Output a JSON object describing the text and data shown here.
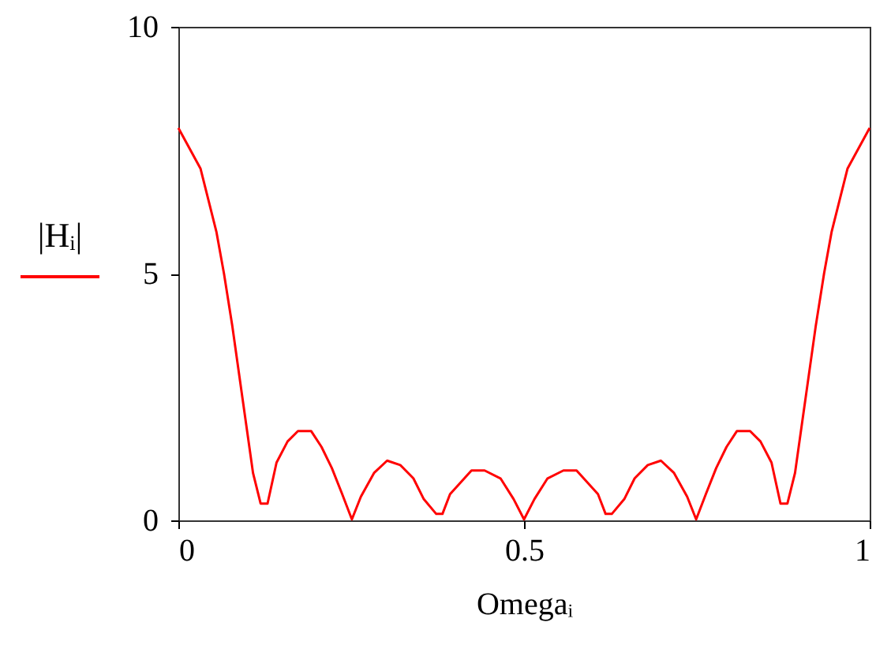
{
  "chart_data": {
    "type": "line",
    "xlabel": "Omegaᵢ",
    "ylabel": "|Hᵢ|",
    "x": [
      0,
      0.032,
      0.055,
      0.066,
      0.078,
      0.093,
      0.108,
      0.119,
      0.129,
      0.142,
      0.158,
      0.173,
      0.192,
      0.207,
      0.222,
      0.237,
      0.251,
      0.264,
      0.283,
      0.302,
      0.321,
      0.34,
      0.355,
      0.373,
      0.382,
      0.393,
      0.424,
      0.443,
      0.466,
      0.485,
      0.5,
      0.515,
      0.534,
      0.557,
      0.576,
      0.607,
      0.618,
      0.627,
      0.645,
      0.66,
      0.679,
      0.698,
      0.717,
      0.736,
      0.749,
      0.763,
      0.778,
      0.793,
      0.808,
      0.827,
      0.842,
      0.858,
      0.871,
      0.881,
      0.892,
      0.907,
      0.922,
      0.934,
      0.945,
      0.968,
      1
    ],
    "series": [
      {
        "color": "#ff0000",
        "values": [
          7.95,
          7.13,
          5.85,
          5.0,
          3.94,
          2.45,
          0.96,
          0.34,
          0.34,
          1.17,
          1.6,
          1.81,
          1.81,
          1.49,
          1.06,
          0.53,
          0.02,
          0.48,
          0.96,
          1.21,
          1.12,
          0.85,
          0.43,
          0.13,
          0.13,
          0.53,
          1.01,
          1.01,
          0.85,
          0.43,
          0.02,
          0.43,
          0.85,
          1.01,
          1.01,
          0.53,
          0.13,
          0.13,
          0.43,
          0.85,
          1.12,
          1.21,
          0.96,
          0.48,
          0.02,
          0.53,
          1.06,
          1.49,
          1.81,
          1.81,
          1.6,
          1.17,
          0.34,
          0.34,
          0.96,
          2.45,
          3.94,
          5.0,
          5.85,
          7.13,
          7.95
        ]
      }
    ],
    "xlim": [
      0,
      1
    ],
    "xticks": [
      0,
      0.5,
      1
    ],
    "ylim": [
      0,
      10
    ],
    "yticks": [
      0,
      5,
      10
    ],
    "grid": false,
    "marker": "none",
    "line_style": "solid"
  }
}
